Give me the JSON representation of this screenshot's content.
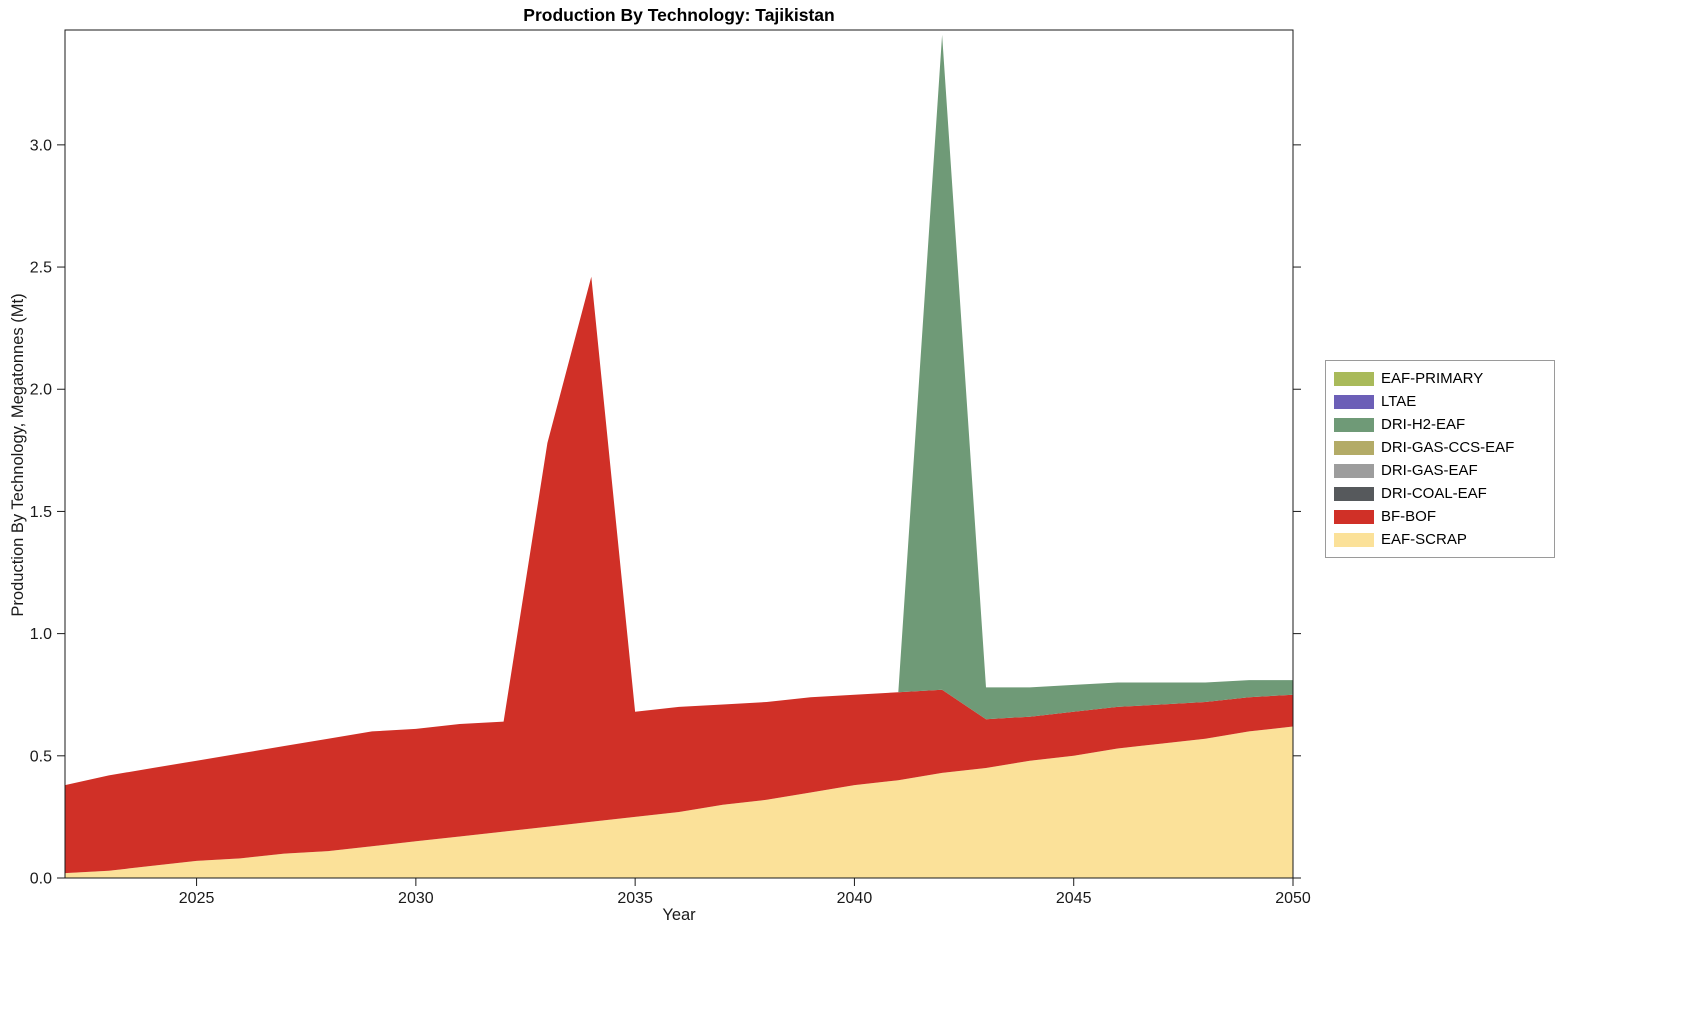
{
  "chart_data": {
    "type": "area",
    "stacked": true,
    "title": "Production By Technology: Tajikistan",
    "xlabel": "Year",
    "ylabel": "Production By Technology, Megatonnes (Mt)",
    "xlim": [
      2022,
      2050
    ],
    "ylim": [
      0,
      3.47
    ],
    "xticks": [
      2025,
      2030,
      2035,
      2040,
      2045,
      2050
    ],
    "yticks": [
      0.0,
      0.5,
      1.0,
      1.5,
      2.0,
      2.5,
      3.0
    ],
    "grid": false,
    "legend_position": "center-right-outside",
    "x": [
      2022,
      2023,
      2024,
      2025,
      2026,
      2027,
      2028,
      2029,
      2030,
      2031,
      2032,
      2033,
      2034,
      2035,
      2036,
      2037,
      2038,
      2039,
      2040,
      2041,
      2042,
      2043,
      2044,
      2045,
      2046,
      2047,
      2048,
      2049,
      2050
    ],
    "series": [
      {
        "name": "EAF-SCRAP",
        "color": "#fbe199",
        "values": [
          0.02,
          0.03,
          0.05,
          0.07,
          0.08,
          0.1,
          0.11,
          0.13,
          0.15,
          0.17,
          0.19,
          0.21,
          0.23,
          0.25,
          0.27,
          0.3,
          0.32,
          0.35,
          0.38,
          0.4,
          0.43,
          0.45,
          0.48,
          0.5,
          0.53,
          0.55,
          0.57,
          0.6,
          0.62
        ]
      },
      {
        "name": "BF-BOF",
        "color": "#d03027",
        "values": [
          0.36,
          0.39,
          0.4,
          0.41,
          0.43,
          0.44,
          0.46,
          0.47,
          0.46,
          0.46,
          0.45,
          1.57,
          2.23,
          0.43,
          0.43,
          0.41,
          0.4,
          0.39,
          0.37,
          0.36,
          0.34,
          0.2,
          0.18,
          0.18,
          0.17,
          0.16,
          0.15,
          0.14,
          0.13
        ]
      },
      {
        "name": "DRI-COAL-EAF",
        "color": "#56595c",
        "values": [
          0,
          0,
          0,
          0,
          0,
          0,
          0,
          0,
          0,
          0,
          0,
          0,
          0,
          0,
          0,
          0,
          0,
          0,
          0,
          0,
          0,
          0,
          0,
          0,
          0,
          0,
          0,
          0,
          0
        ]
      },
      {
        "name": "DRI-GAS-EAF",
        "color": "#9d9d9d",
        "values": [
          0,
          0,
          0,
          0,
          0,
          0,
          0,
          0,
          0,
          0,
          0,
          0,
          0,
          0,
          0,
          0,
          0,
          0,
          0,
          0,
          0,
          0,
          0,
          0,
          0,
          0,
          0,
          0,
          0
        ]
      },
      {
        "name": "DRI-GAS-CCS-EAF",
        "color": "#b3ab67",
        "values": [
          0,
          0,
          0,
          0,
          0,
          0,
          0,
          0,
          0,
          0,
          0,
          0,
          0,
          0,
          0,
          0,
          0,
          0,
          0,
          0,
          0,
          0,
          0,
          0,
          0,
          0,
          0,
          0,
          0
        ]
      },
      {
        "name": "DRI-H2-EAF",
        "color": "#6f9a77",
        "values": [
          0,
          0,
          0,
          0,
          0,
          0,
          0,
          0,
          0,
          0,
          0,
          0,
          0,
          0,
          0,
          0,
          0,
          0,
          0,
          0,
          2.68,
          0.13,
          0.12,
          0.11,
          0.1,
          0.09,
          0.08,
          0.07,
          0.06
        ]
      },
      {
        "name": "LTAE",
        "color": "#6c5fb7",
        "values": [
          0,
          0,
          0,
          0,
          0,
          0,
          0,
          0,
          0,
          0,
          0,
          0,
          0,
          0,
          0,
          0,
          0,
          0,
          0,
          0,
          0,
          0,
          0,
          0,
          0,
          0,
          0,
          0,
          0
        ]
      },
      {
        "name": "EAF-PRIMARY",
        "color": "#a9ba5a",
        "values": [
          0,
          0,
          0,
          0,
          0,
          0,
          0,
          0,
          0,
          0,
          0,
          0,
          0,
          0,
          0,
          0,
          0,
          0,
          0,
          0,
          0,
          0,
          0,
          0,
          0,
          0,
          0,
          0,
          0
        ]
      }
    ],
    "legend_top_to_bottom": [
      "EAF-PRIMARY",
      "LTAE",
      "DRI-H2-EAF",
      "DRI-GAS-CCS-EAF",
      "DRI-GAS-EAF",
      "DRI-COAL-EAF",
      "BF-BOF",
      "EAF-SCRAP"
    ]
  }
}
